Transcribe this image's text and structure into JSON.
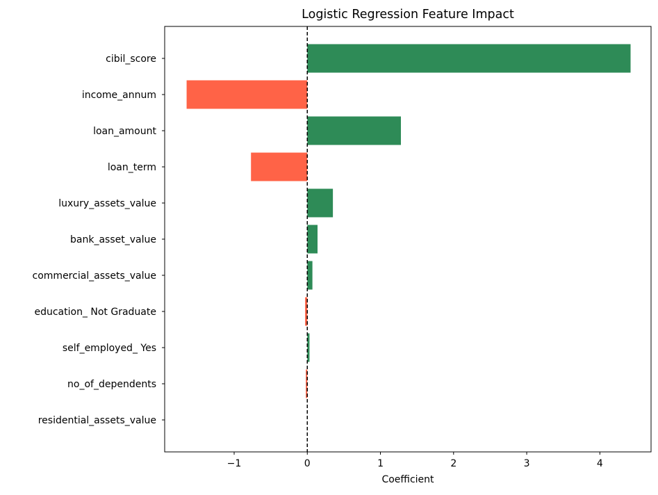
{
  "chart_data": {
    "type": "bar",
    "orientation": "horizontal",
    "title": "Logistic Regression Feature Impact",
    "xlabel": "Coefficient",
    "ylabel": "",
    "categories": [
      "cibil_score",
      "income_annum",
      "loan_amount",
      "loan_term",
      "luxury_assets_value",
      "bank_asset_value",
      "commercial_assets_value",
      "education_ Not Graduate",
      "self_employed_ Yes",
      "no_of_dependents",
      "residential_assets_value"
    ],
    "values": [
      4.42,
      -1.65,
      1.28,
      -0.77,
      0.35,
      0.14,
      0.07,
      -0.03,
      0.03,
      -0.02,
      0.0
    ],
    "xlim": [
      -1.95,
      4.7
    ],
    "xticks": [
      -1,
      0,
      1,
      2,
      3,
      4
    ],
    "xtick_labels": [
      "−1",
      "0",
      "1",
      "2",
      "3",
      "4"
    ],
    "reference_line": {
      "x": 0,
      "style": "dashed",
      "color": "#000000"
    },
    "colors": {
      "positive": "#2e8b57",
      "negative": "#ff6347"
    },
    "grid": false,
    "legend": "none"
  }
}
